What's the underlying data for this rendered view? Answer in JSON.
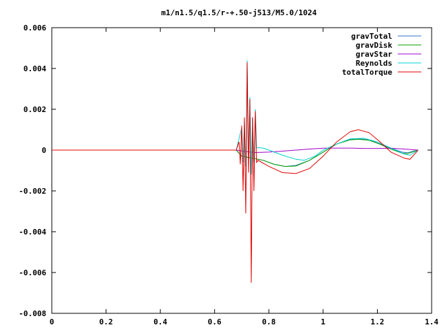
{
  "chart_data": {
    "type": "line",
    "title": "m1/n1.5/q1.5/r-+.50-j513/M5.0/1024",
    "xlabel": "",
    "ylabel": "",
    "xlim": [
      0,
      1.4
    ],
    "ylim": [
      -0.008,
      0.006
    ],
    "x_ticks": [
      "0",
      "0.2",
      "0.4",
      "0.6",
      "0.8",
      "1",
      "1.2",
      "1.4"
    ],
    "y_ticks": [
      "0.006",
      "0.004",
      "0.002",
      "0",
      "-0.002",
      "-0.004",
      "-0.006",
      "-0.008"
    ],
    "grid": false,
    "legend_position": "top-right",
    "series": [
      {
        "name": "gravTotal",
        "color": "#3070c8",
        "points": [
          [
            0.68,
            0
          ],
          [
            0.7,
            -0.0003
          ],
          [
            0.74,
            -0.0004
          ],
          [
            0.78,
            -0.0005
          ],
          [
            0.82,
            -0.0007
          ],
          [
            0.86,
            -0.0008
          ],
          [
            0.9,
            -0.00075
          ],
          [
            0.95,
            -0.0005
          ],
          [
            1.0,
            -0.0001
          ],
          [
            1.05,
            0.0003
          ],
          [
            1.1,
            0.00052
          ],
          [
            1.13,
            0.00055
          ],
          [
            1.17,
            0.0005
          ],
          [
            1.21,
            0.0003
          ],
          [
            1.25,
            0.0001
          ],
          [
            1.29,
            -0.0001
          ],
          [
            1.31,
            -0.00013
          ],
          [
            1.35,
            0
          ]
        ]
      },
      {
        "name": "gravDisk",
        "color": "#00a000",
        "points": [
          [
            0.68,
            0
          ],
          [
            0.7,
            -0.0003
          ],
          [
            0.74,
            -0.0004
          ],
          [
            0.78,
            -0.0005
          ],
          [
            0.82,
            -0.0007
          ],
          [
            0.86,
            -0.0008
          ],
          [
            0.9,
            -0.00078
          ],
          [
            0.95,
            -0.0005
          ],
          [
            1.0,
            -0.0001
          ],
          [
            1.05,
            0.0003
          ],
          [
            1.1,
            0.0005
          ],
          [
            1.13,
            0.00053
          ],
          [
            1.17,
            0.00048
          ],
          [
            1.21,
            0.00028
          ],
          [
            1.25,
            5e-05
          ],
          [
            1.29,
            -0.00015
          ],
          [
            1.31,
            -0.00018
          ],
          [
            1.35,
            0
          ]
        ]
      },
      {
        "name": "gravStar",
        "color": "#a000c8",
        "points": [
          [
            0.68,
            0
          ],
          [
            0.72,
            -8e-05
          ],
          [
            0.75,
            -0.00012
          ],
          [
            0.8,
            -0.0001
          ],
          [
            0.85,
            -5e-05
          ],
          [
            0.9,
            0
          ],
          [
            0.95,
            5e-05
          ],
          [
            1.0,
            9e-05
          ],
          [
            1.05,
            0.0001
          ],
          [
            1.1,
            0.0001
          ],
          [
            1.15,
            8e-05
          ],
          [
            1.2,
            8e-05
          ],
          [
            1.25,
            9e-05
          ],
          [
            1.3,
            5e-05
          ],
          [
            1.35,
            0
          ]
        ]
      },
      {
        "name": "Reynolds",
        "color": "#00d0d0",
        "points": [
          [
            0.68,
            0
          ],
          [
            0.7,
            0.0011
          ],
          [
            0.705,
            -0.0006
          ],
          [
            0.71,
            0.0014
          ],
          [
            0.715,
            -0.0008
          ],
          [
            0.72,
            0.0044
          ],
          [
            0.725,
            -0.0004
          ],
          [
            0.73,
            0.0026
          ],
          [
            0.735,
            -0.0012
          ],
          [
            0.74,
            0.0016
          ],
          [
            0.745,
            -0.0006
          ],
          [
            0.75,
            0.002
          ],
          [
            0.755,
            0.0001
          ],
          [
            0.76,
            0.00012
          ],
          [
            0.78,
            0.0001
          ],
          [
            0.8,
            0
          ],
          [
            0.85,
            -0.00025
          ],
          [
            0.9,
            -0.00045
          ],
          [
            0.93,
            -0.0005
          ],
          [
            0.97,
            -0.0003
          ],
          [
            1.0,
            0
          ],
          [
            1.05,
            0.0003
          ],
          [
            1.1,
            0.00055
          ],
          [
            1.15,
            0.00058
          ],
          [
            1.2,
            0.0004
          ],
          [
            1.25,
            0.0001
          ],
          [
            1.3,
            -0.0002
          ],
          [
            1.32,
            -0.00025
          ],
          [
            1.35,
            0
          ]
        ]
      },
      {
        "name": "totalTorque",
        "color": "#e00000",
        "points": [
          [
            0,
            0
          ],
          [
            0.68,
            0
          ],
          [
            0.69,
            0.0004
          ],
          [
            0.695,
            -0.0007
          ],
          [
            0.7,
            0.0012
          ],
          [
            0.705,
            -0.002
          ],
          [
            0.71,
            0.0016
          ],
          [
            0.715,
            -0.0031
          ],
          [
            0.72,
            0.0043
          ],
          [
            0.725,
            -0.0011
          ],
          [
            0.73,
            0.0025
          ],
          [
            0.735,
            -0.0065
          ],
          [
            0.74,
            0.0016
          ],
          [
            0.745,
            -0.002
          ],
          [
            0.75,
            0.0019
          ],
          [
            0.755,
            -0.0006
          ],
          [
            0.76,
            -0.0005
          ],
          [
            0.8,
            -0.0008
          ],
          [
            0.85,
            -0.0011
          ],
          [
            0.9,
            -0.00115
          ],
          [
            0.95,
            -0.0009
          ],
          [
            1.0,
            -0.0003
          ],
          [
            1.05,
            0.0004
          ],
          [
            1.1,
            0.0009
          ],
          [
            1.13,
            0.001
          ],
          [
            1.17,
            0.00085
          ],
          [
            1.21,
            0.0004
          ],
          [
            1.25,
            -0.0001
          ],
          [
            1.3,
            -0.0004
          ],
          [
            1.32,
            -0.00045
          ],
          [
            1.35,
            0
          ]
        ]
      }
    ]
  }
}
